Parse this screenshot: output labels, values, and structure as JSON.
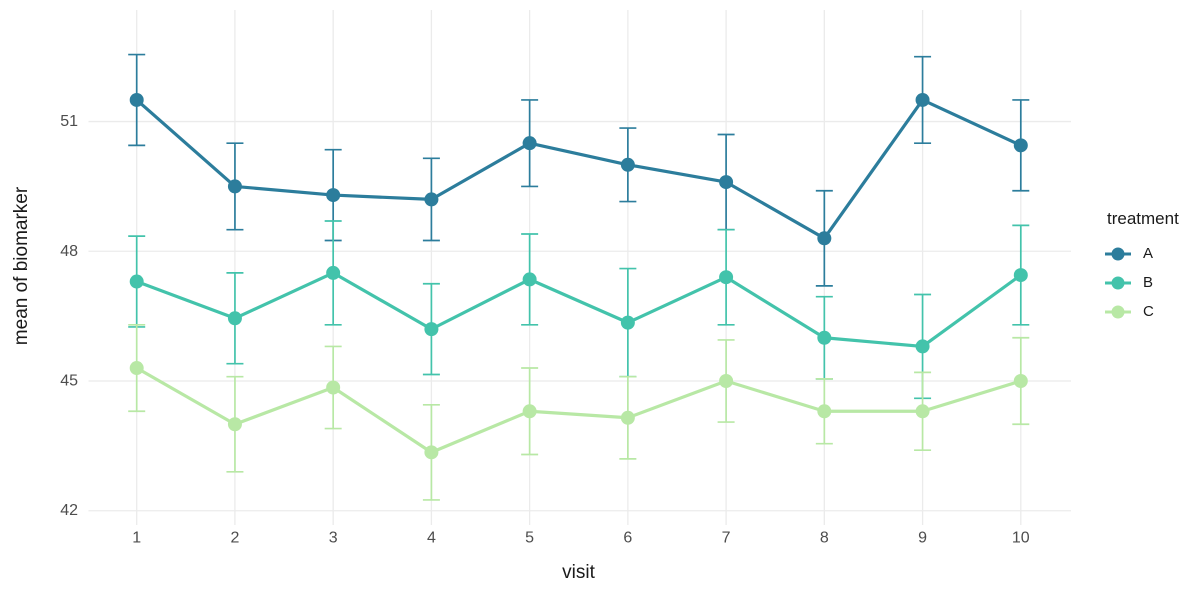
{
  "figure": {
    "background_color": "#ffffff",
    "grid_color": "#ebebeb",
    "tick_label_color": "#4d4d4d",
    "axis_title_color": "#1a1a1a",
    "legend": {
      "title": "treatment",
      "items": [
        {
          "label": "A",
          "color": "#2c7d9c"
        },
        {
          "label": "B",
          "color": "#43c3ab"
        },
        {
          "label": "C",
          "color": "#b8e8a5"
        }
      ]
    }
  },
  "chart_data": {
    "type": "line",
    "title": "",
    "xlabel": "visit",
    "ylabel": "mean of biomarker",
    "x": [
      1,
      2,
      3,
      4,
      5,
      6,
      7,
      8,
      9,
      10
    ],
    "x_tick_labels": [
      "1",
      "2",
      "3",
      "4",
      "5",
      "6",
      "7",
      "8",
      "9",
      "10"
    ],
    "y_ticks": [
      42,
      45,
      48,
      51
    ],
    "y_tick_labels": [
      "42",
      "45",
      "48",
      "51"
    ],
    "xlim": [
      0.55,
      10.45
    ],
    "ylim": [
      41.67,
      53.58
    ],
    "grid": true,
    "error_bars": true,
    "legend_position": "right",
    "legend_title": "treatment",
    "series": [
      {
        "name": "A",
        "color": "#2c7d9c",
        "means": [
          51.5,
          49.5,
          49.3,
          49.2,
          50.5,
          50.0,
          49.6,
          48.3,
          51.5,
          50.45
        ],
        "errors": [
          1.05,
          1.0,
          1.05,
          0.95,
          1.0,
          0.85,
          1.1,
          1.1,
          1.0,
          1.05
        ]
      },
      {
        "name": "B",
        "color": "#43c3ab",
        "means": [
          47.3,
          46.45,
          47.5,
          46.2,
          47.35,
          46.35,
          47.4,
          46.0,
          45.8,
          47.45
        ],
        "errors": [
          1.05,
          1.05,
          1.2,
          1.05,
          1.05,
          1.25,
          1.1,
          0.95,
          1.2,
          1.15
        ]
      },
      {
        "name": "C",
        "color": "#b8e8a5",
        "means": [
          45.3,
          44.0,
          44.85,
          43.35,
          44.3,
          44.15,
          45.0,
          44.3,
          44.3,
          45.0
        ],
        "errors": [
          1.0,
          1.1,
          0.95,
          1.1,
          1.0,
          0.95,
          0.95,
          0.75,
          0.9,
          1.0
        ]
      }
    ]
  }
}
